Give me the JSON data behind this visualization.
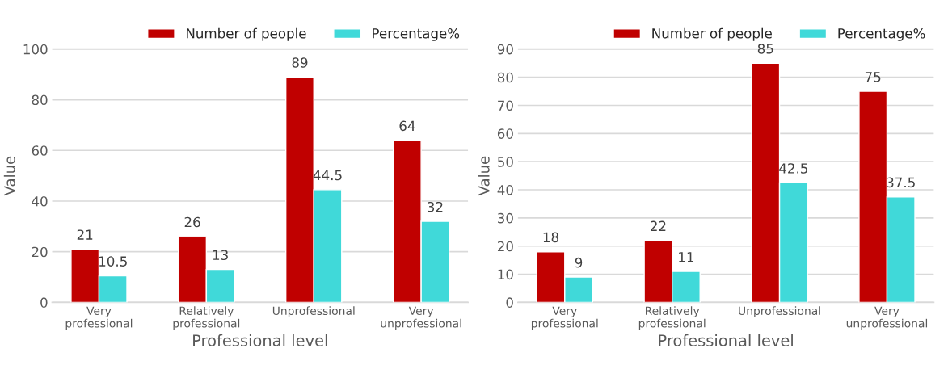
{
  "chart_data": [
    {
      "type": "bar",
      "xlabel": "Professional level",
      "ylabel": "Value",
      "categories": [
        "Very\nprofessional",
        "Relatively\nprofessional",
        "Unprofessional",
        "Very\nunprofessional"
      ],
      "series": [
        {
          "name": "Number of people",
          "color": "#c00000",
          "values": [
            21,
            26,
            89,
            64
          ]
        },
        {
          "name": "Percentage%",
          "color": "#40d9d9",
          "values": [
            10.5,
            13,
            44.5,
            32
          ]
        }
      ],
      "ylim": [
        0,
        100
      ],
      "yticks": [
        0,
        20,
        40,
        60,
        80,
        100
      ],
      "grid": "y",
      "legend": "top",
      "data_labels": true
    },
    {
      "type": "bar",
      "xlabel": "Professional level",
      "ylabel": "Value",
      "categories": [
        "Very\nprofessional",
        "Relatively\nprofessional",
        "Unprofessional",
        "Very\nunprofessional"
      ],
      "series": [
        {
          "name": "Number of people",
          "color": "#c00000",
          "values": [
            18,
            22,
            85,
            75
          ]
        },
        {
          "name": "Percentage%",
          "color": "#40d9d9",
          "values": [
            9,
            11,
            42.5,
            37.5
          ]
        }
      ],
      "ylim": [
        0,
        90
      ],
      "yticks": [
        0,
        10,
        20,
        30,
        40,
        50,
        60,
        70,
        80,
        90
      ],
      "grid": "y",
      "legend": "top",
      "data_labels": true
    }
  ]
}
